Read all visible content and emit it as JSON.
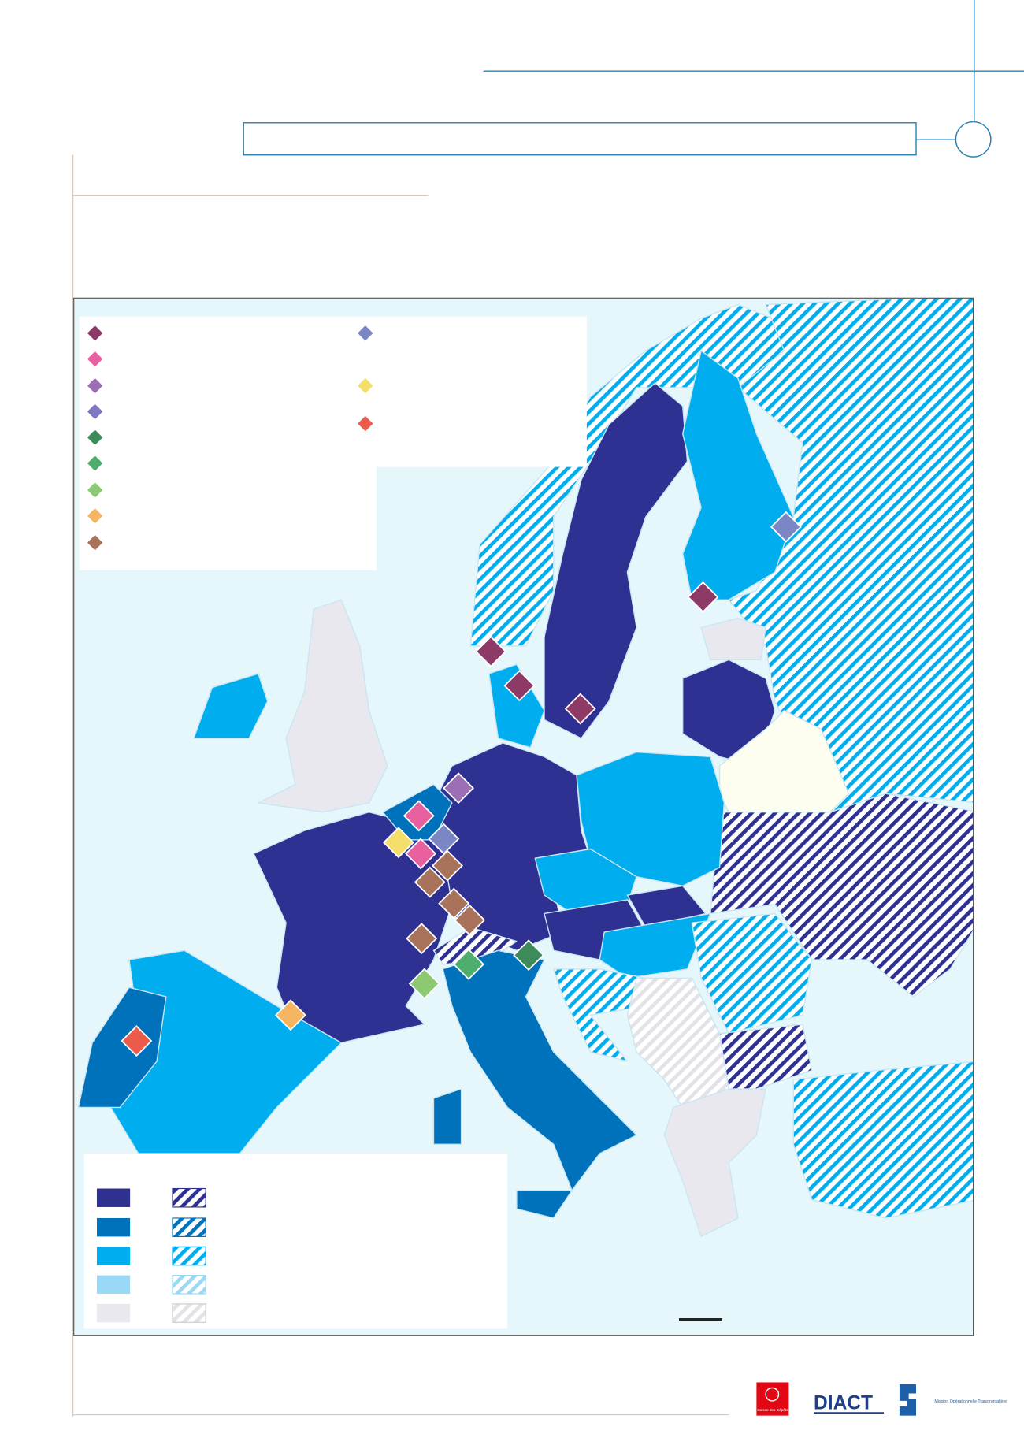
{
  "logos": {
    "caisse": "Caisse des Dépôts",
    "diact": "DIACT",
    "mot": "Mission Opérationnelle Transfrontalière"
  }
}
